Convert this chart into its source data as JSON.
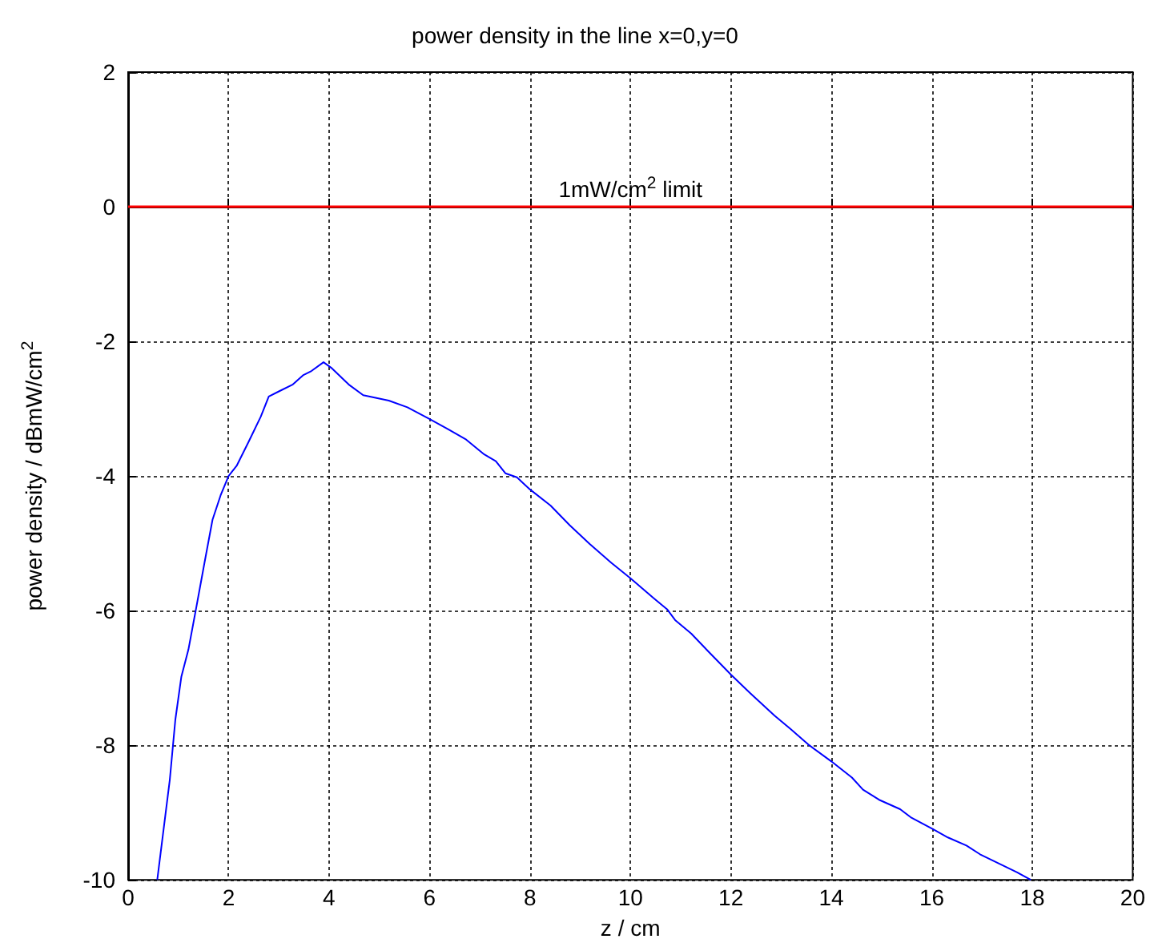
{
  "chart_data": {
    "type": "line",
    "title": "power density in the line x=0,y=0",
    "xlabel": "z / cm",
    "ylabel": "power density / dBmW/cm$^{2}$",
    "xlim": [
      0,
      20
    ],
    "xticks": [
      0,
      2,
      4,
      6,
      8,
      10,
      12,
      14,
      16,
      18,
      20
    ],
    "ylim": [
      -10,
      2
    ],
    "yticks": [
      -10,
      -8,
      -6,
      -4,
      -2,
      0,
      2
    ],
    "grid": true,
    "marker": "none",
    "line_style": "solid",
    "series": [
      {
        "color": "#0000ff",
        "x": [
          0.58,
          0.83,
          0.94,
          1.06,
          1.2,
          1.36,
          1.52,
          1.68,
          1.84,
          2.0,
          2.16,
          2.4,
          2.64,
          2.8,
          3.01,
          3.28,
          3.49,
          3.65,
          3.89,
          4.04,
          4.39,
          4.68,
          5.19,
          5.56,
          5.99,
          6.36,
          6.73,
          7.09,
          7.32,
          7.51,
          7.74,
          8.0,
          8.41,
          8.79,
          9.19,
          9.62,
          10.0,
          10.47,
          10.73,
          10.89,
          11.21,
          11.53,
          12.0,
          12.39,
          12.87,
          13.19,
          13.56,
          14.0,
          14.41,
          14.63,
          14.95,
          15.37,
          15.58,
          16.03,
          16.32,
          16.69,
          16.96,
          17.7,
          17.97
        ],
        "values": [
          -10.0,
          -8.51,
          -7.62,
          -6.98,
          -6.58,
          -5.94,
          -5.29,
          -4.65,
          -4.29,
          -4.0,
          -3.85,
          -3.49,
          -3.12,
          -2.82,
          -2.74,
          -2.64,
          -2.5,
          -2.44,
          -2.31,
          -2.39,
          -2.64,
          -2.8,
          -2.88,
          -2.98,
          -3.15,
          -3.3,
          -3.46,
          -3.68,
          -3.78,
          -3.96,
          -4.02,
          -4.2,
          -4.44,
          -4.73,
          -5.01,
          -5.29,
          -5.52,
          -5.82,
          -5.98,
          -6.14,
          -6.34,
          -6.59,
          -6.95,
          -7.23,
          -7.56,
          -7.76,
          -8.0,
          -8.24,
          -8.48,
          -8.66,
          -8.81,
          -8.95,
          -9.07,
          -9.25,
          -9.37,
          -9.49,
          -9.62,
          -9.89,
          -10.0
        ]
      }
    ],
    "ref_lines": [
      {
        "axis": "y",
        "value": 0,
        "label": "1mW/cm$^{2}$ limit",
        "color": "#ff0000"
      }
    ]
  }
}
